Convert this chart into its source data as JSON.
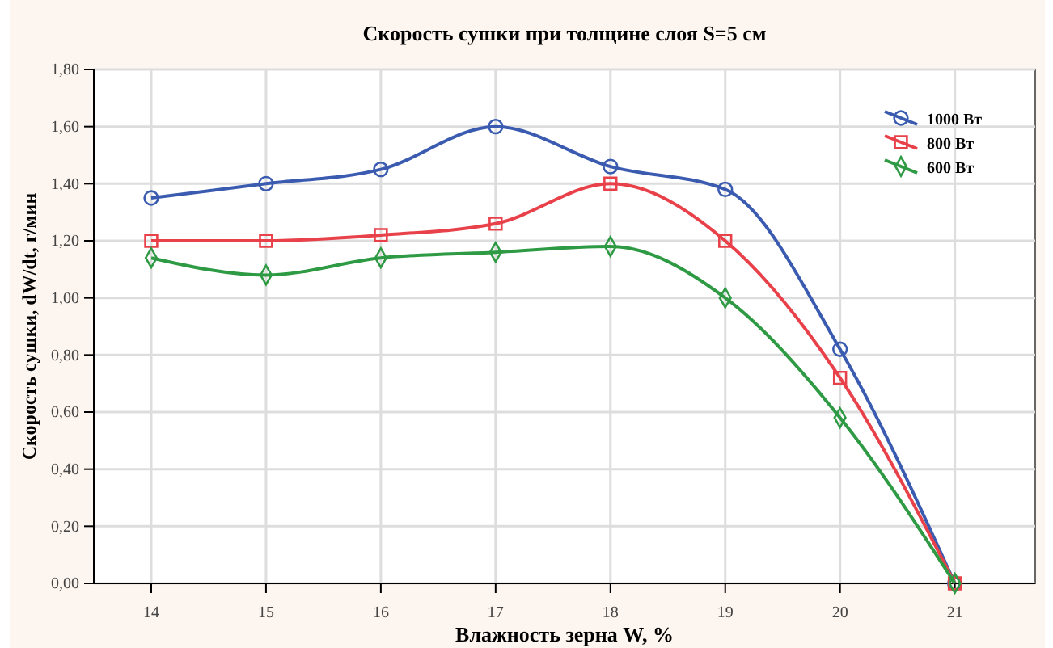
{
  "chart_data": {
    "type": "line",
    "title": "Скорость сушки при толщине слоя S=5 см",
    "xlabel": "Влажность зерна W, %",
    "ylabel": "Скорость сушки, dW/dt, г/мин",
    "x": [
      14,
      15,
      16,
      17,
      18,
      19,
      20,
      21
    ],
    "series": [
      {
        "name": "1000 Вт",
        "color": "#3a5bb0",
        "marker": "circle",
        "values": [
          1.35,
          1.4,
          1.45,
          1.6,
          1.46,
          1.38,
          0.82,
          0
        ]
      },
      {
        "name": "800 Вт",
        "color": "#e8414a",
        "marker": "square",
        "values": [
          1.2,
          1.2,
          1.22,
          1.26,
          1.4,
          1.2,
          0.72,
          0
        ]
      },
      {
        "name": "600 Вт",
        "color": "#2e9a44",
        "marker": "diamond",
        "values": [
          1.14,
          1.08,
          1.14,
          1.16,
          1.18,
          1.0,
          0.58,
          0
        ]
      }
    ],
    "xlim": [
      13.5,
      21.7
    ],
    "xticks": [
      14,
      15,
      16,
      17,
      18,
      19,
      20,
      21
    ],
    "ylim": [
      0,
      1.8
    ],
    "yticks": [
      {
        "value": 0,
        "label": "0,00"
      },
      {
        "value": 0.2,
        "label": "0,20"
      },
      {
        "value": 0.4,
        "label": "0,40"
      },
      {
        "value": 0.6,
        "label": "0,60"
      },
      {
        "value": 0.8,
        "label": "0,80"
      },
      {
        "value": 1,
        "label": "1,00"
      },
      {
        "value": 1.2,
        "label": "1,20"
      },
      {
        "value": 1.4,
        "label": "1,40"
      },
      {
        "value": 1.6,
        "label": "1,60"
      },
      {
        "value": 1.8,
        "label": "1,80"
      }
    ],
    "grid": true,
    "legend": "top right",
    "line_style": "solid"
  }
}
